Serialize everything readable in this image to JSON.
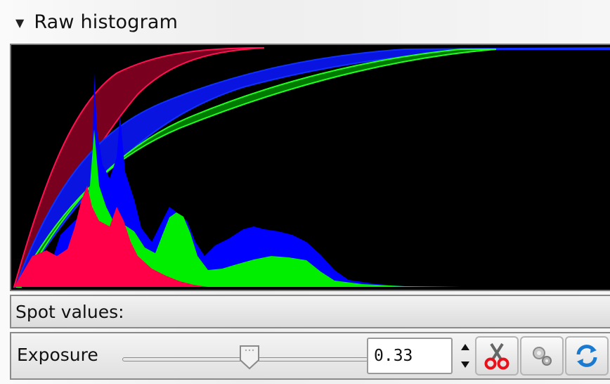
{
  "panel": {
    "title": "Raw histogram",
    "collapse_glyph": "▼"
  },
  "histogram": {
    "channels": [
      "red",
      "green",
      "blue"
    ],
    "colors": {
      "red": "#ff0044",
      "green": "#00ff00",
      "blue": "#0000ff",
      "background": "#000000"
    }
  },
  "spot": {
    "label": "Spot values:"
  },
  "exposure": {
    "label": "Exposure",
    "value": "0.33",
    "slider_fraction": 0.58
  },
  "toolbar": {
    "icons": [
      "scissors-icon",
      "gears-icon",
      "refresh-icon"
    ]
  }
}
